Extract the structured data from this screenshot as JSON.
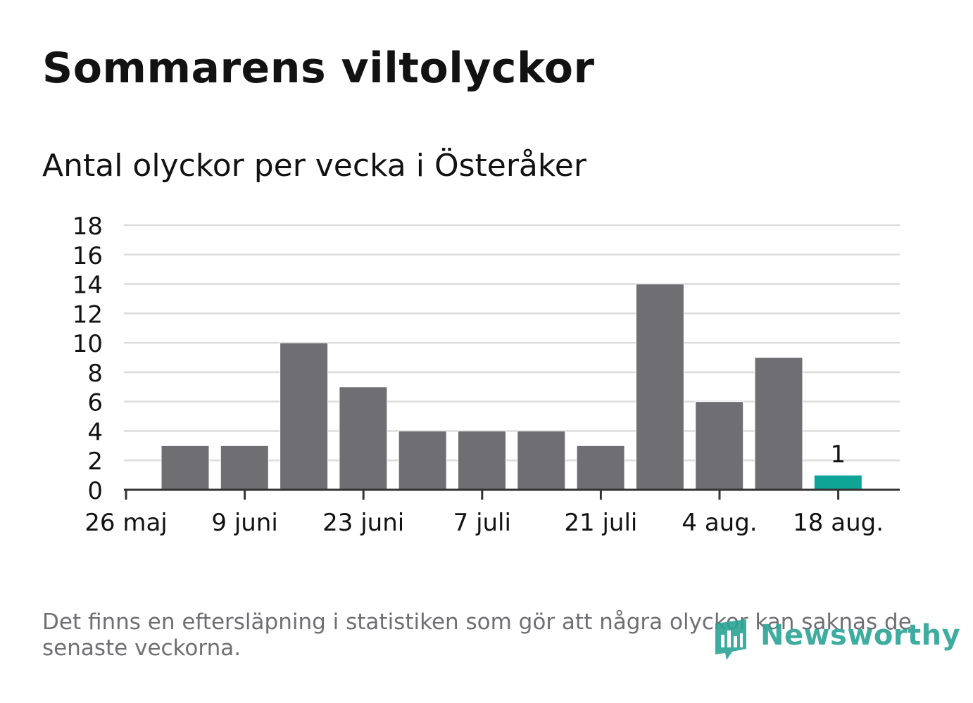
{
  "title": "Sommarens viltolyckor",
  "subtitle": "Antal olyckor per vecka i Österåker",
  "footnote": "Det finns en eftersläpning i statistiken som gör att några olyckor kan saknas de senaste veckorna.",
  "brand": {
    "name": "Newsworthy",
    "color": "#2aa595",
    "icon": "newsworthy-logo-icon"
  },
  "colors": {
    "bar": "#6f6e73",
    "highlight": "#0fa596",
    "grid": "#dcdcdc",
    "axis": "#333333",
    "text": "#121212"
  },
  "chart_data": {
    "type": "bar",
    "title": "Sommarens viltolyckor",
    "subtitle": "Antal olyckor per vecka i Österåker",
    "xlabel": "",
    "ylabel": "",
    "ylim": [
      0,
      18
    ],
    "yticks": [
      0,
      2,
      4,
      6,
      8,
      10,
      12,
      14,
      16,
      18
    ],
    "grid": true,
    "legend": "none",
    "x_tick_labels": [
      "26 maj",
      "9 juni",
      "23 juni",
      "7 juli",
      "21 juli",
      "4 aug.",
      "18 aug."
    ],
    "values": [
      3,
      3,
      10,
      7,
      4,
      4,
      4,
      3,
      14,
      6,
      9,
      1
    ],
    "highlight_index": 11,
    "data_labels": [
      {
        "index": 11,
        "text": "1"
      }
    ]
  }
}
